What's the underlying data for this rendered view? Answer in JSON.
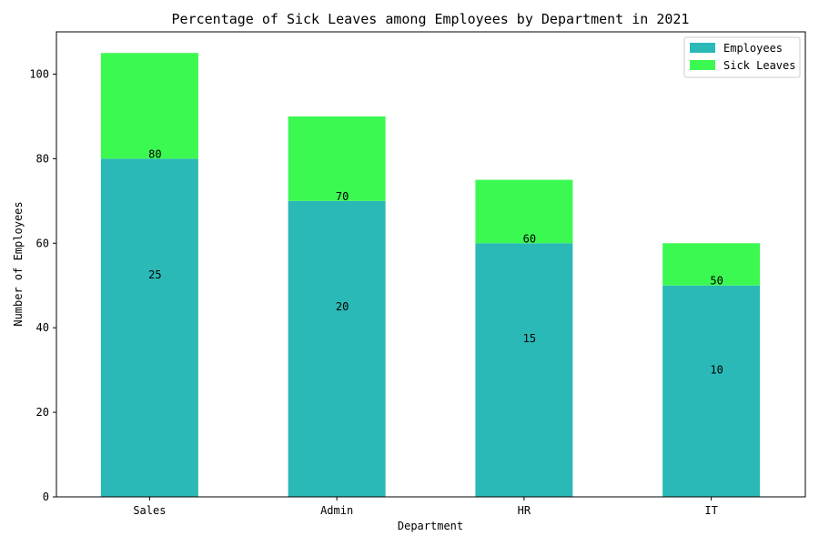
{
  "chart_data": {
    "type": "bar",
    "stacked": true,
    "title": "Percentage of Sick Leaves among Employees by Department in 2021",
    "xlabel": "Department",
    "ylabel": "Number of Employees",
    "categories": [
      "Sales",
      "Admin",
      "HR",
      "IT"
    ],
    "series": [
      {
        "name": "Employees",
        "values": [
          80,
          70,
          60,
          50
        ],
        "color": "#2ab9b6"
      },
      {
        "name": "Sick Leaves",
        "values": [
          25,
          20,
          15,
          10
        ],
        "color": "#3cf952"
      }
    ],
    "ylim": [
      0,
      110
    ],
    "yticks": [
      0,
      20,
      40,
      60,
      80,
      100
    ],
    "grid": false,
    "legend_position": "top-right"
  }
}
